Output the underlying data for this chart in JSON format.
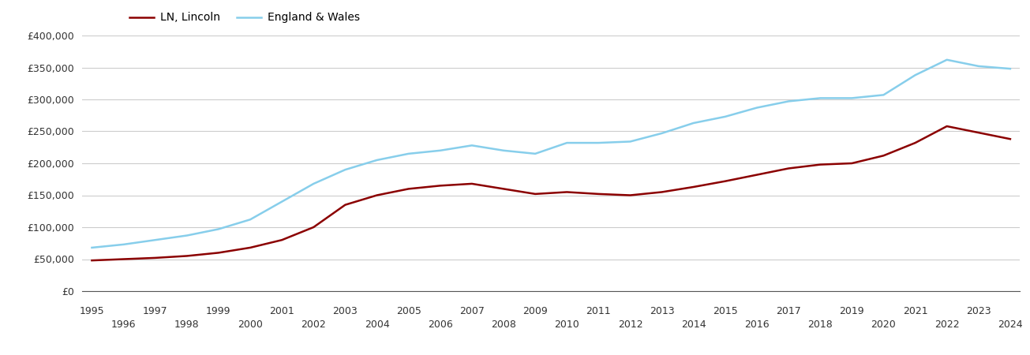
{
  "lincoln_color": "#8B0000",
  "ew_color": "#87CEEB",
  "legend_lincoln": "LN, Lincoln",
  "legend_ew": "England & Wales",
  "background_color": "#ffffff",
  "grid_color": "#cccccc",
  "ylim": [
    0,
    400000
  ],
  "yticks": [
    0,
    50000,
    100000,
    150000,
    200000,
    250000,
    300000,
    350000,
    400000
  ],
  "years": [
    1995,
    1996,
    1997,
    1998,
    1999,
    2000,
    2001,
    2002,
    2003,
    2004,
    2005,
    2006,
    2007,
    2008,
    2009,
    2010,
    2011,
    2012,
    2013,
    2014,
    2015,
    2016,
    2017,
    2018,
    2019,
    2020,
    2021,
    2022,
    2023,
    2024
  ],
  "lincoln_values": [
    48000,
    50000,
    52000,
    55000,
    60000,
    68000,
    80000,
    100000,
    135000,
    150000,
    160000,
    165000,
    168000,
    160000,
    152000,
    155000,
    152000,
    150000,
    155000,
    163000,
    172000,
    182000,
    192000,
    198000,
    200000,
    212000,
    232000,
    258000,
    248000,
    238000
  ],
  "ew_values": [
    68000,
    73000,
    80000,
    87000,
    97000,
    112000,
    140000,
    168000,
    190000,
    205000,
    215000,
    220000,
    228000,
    220000,
    215000,
    232000,
    232000,
    234000,
    247000,
    263000,
    273000,
    287000,
    297000,
    302000,
    302000,
    307000,
    338000,
    362000,
    352000,
    348000
  ],
  "line_width": 1.8,
  "xlim_start": 1995,
  "xlim_end": 2024
}
